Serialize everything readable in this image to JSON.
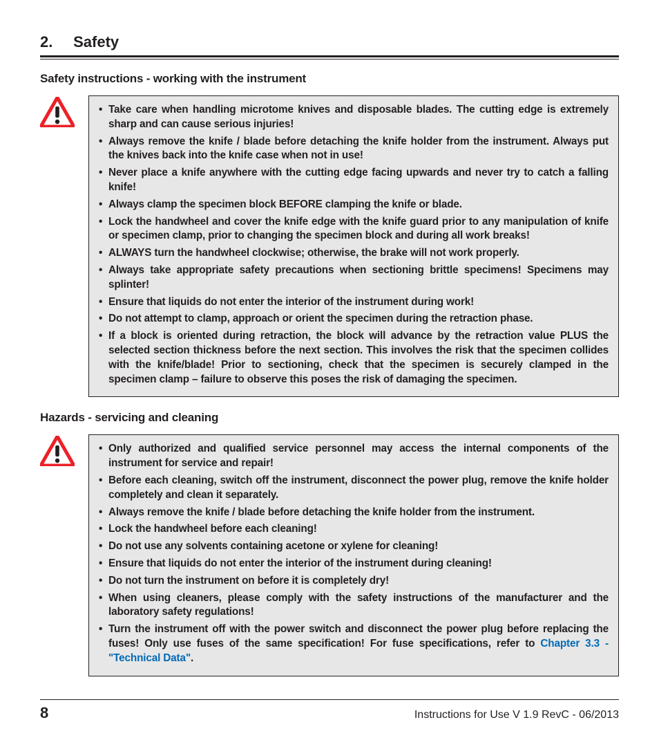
{
  "section": {
    "number": "2.",
    "title": "Safety"
  },
  "blocks": [
    {
      "subheading": "Safety instructions - working with the instrument",
      "items": [
        {
          "text": "Take care when handling microtome knives and disposable blades. The cutting edge is extremely sharp and can cause serious injuries!"
        },
        {
          "text": "Always remove the knife / blade before detaching the knife holder from the instrument. Always put the knives back into the knife case when not in use!"
        },
        {
          "text": "Never place a knife anywhere with the cutting edge facing upwards and never try to catch a falling knife!"
        },
        {
          "text": "Always clamp the specimen block BEFORE clamping the knife or blade."
        },
        {
          "text": "Lock the handwheel and cover the knife edge with the knife guard prior to any manipulation of knife or specimen clamp, prior to changing the specimen block and during all work breaks!"
        },
        {
          "text": "ALWAYS turn the handwheel clockwise; otherwise, the brake will not work properly."
        },
        {
          "text": "Always take appropriate safety precautions when sectioning brittle specimens! Specimens may splinter!"
        },
        {
          "text": "Ensure that liquids do not enter the interior of the instrument during work!"
        },
        {
          "text": "Do not attempt to clamp, approach or orient the specimen during the retraction phase."
        },
        {
          "text": "If a block is oriented during retraction, the block will advance by the retraction value PLUS the selected section thickness before the next section. This involves the risk that the specimen collides with the knife/blade! Prior to sectioning, check that the specimen is securely clamped in the specimen clamp – failure to observe this poses the risk of damaging the specimen."
        }
      ]
    },
    {
      "subheading": "Hazards - servicing and cleaning",
      "items": [
        {
          "text": "Only authorized and qualified service personnel may access the internal components of the instrument for service and repair!"
        },
        {
          "text": "Before each cleaning, switch off the instrument, disconnect the power plug, remove the knife holder completely and clean it separately."
        },
        {
          "text": "Always remove the knife / blade before detaching the knife holder from the instrument."
        },
        {
          "text": "Lock the handwheel before each cleaning!"
        },
        {
          "text": "Do not use any solvents containing acetone or xylene for cleaning!"
        },
        {
          "text": "Ensure that liquids do not enter the interior of the instrument during cleaning!"
        },
        {
          "text": "Do not turn the instrument on before it is completely dry!"
        },
        {
          "text": "When using cleaners, please comply with the safety instructions of the manufacturer and the laboratory safety regulations!"
        },
        {
          "text": "Turn the instrument off with the power switch and disconnect the power plug before replacing the fuses! Only use fuses of the same specification! For fuse specifications, refer to ",
          "link": "Chapter 3.3 - \"Technical Data\"",
          "after_link": "."
        }
      ]
    }
  ],
  "footer": {
    "page_number": "8",
    "text": "Instructions for Use V 1.9 RevC - 06/2013"
  },
  "colors": {
    "icon_red": "#ec2027",
    "icon_black": "#231f20",
    "link_blue": "#006bb6",
    "box_bg": "#e7e7e8"
  }
}
